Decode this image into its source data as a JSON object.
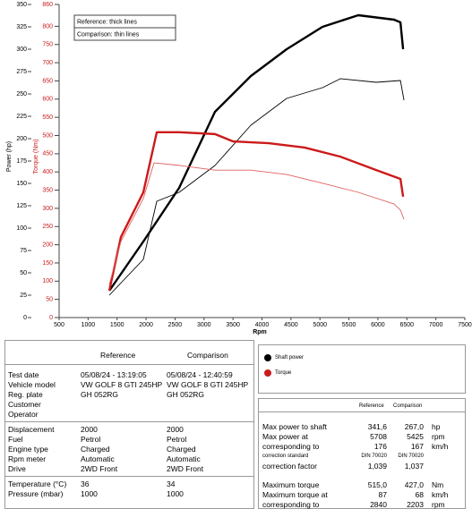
{
  "chart_data": {
    "type": "line",
    "x_label": "Rpm",
    "y_label": "Power (hp)",
    "y2_label": "Torque (Nm)",
    "annotations": [
      "Reference: thick lines",
      "Comparison: thin lines"
    ],
    "xlim": [
      500,
      7500
    ],
    "xticks": [
      500,
      1000,
      1500,
      2000,
      2500,
      3000,
      3500,
      4000,
      4500,
      5000,
      5500,
      6000,
      6500,
      7000,
      7500
    ],
    "ylim": [
      0,
      350
    ],
    "yticks": [
      0,
      25,
      50,
      75,
      100,
      125,
      150,
      175,
      200,
      225,
      250,
      275,
      300,
      325,
      350
    ],
    "y2lim": [
      0,
      860
    ],
    "y2ticks": [
      0,
      50,
      100,
      150,
      200,
      250,
      300,
      350,
      400,
      450,
      500,
      550,
      600,
      650,
      700,
      750,
      800,
      860
    ],
    "legend": [
      {
        "name": "Shaft power",
        "color": "#000000"
      },
      {
        "name": "Torque",
        "color": "#cc1a1a"
      }
    ],
    "series": [
      {
        "color": "#000000",
        "line_width": 2.4,
        "x": [
          1366,
          1953,
          2571,
          3189,
          3808,
          4426,
          5044,
          5662,
          6280,
          6389,
          6435
        ],
        "values": [
          30,
          85,
          145,
          230,
          270,
          300,
          325,
          338,
          333,
          330,
          300
        ]
      },
      {
        "color": "#000000",
        "line_width": 0.9,
        "x": [
          1366,
          1953,
          2185,
          2571,
          3189,
          3808,
          4426,
          5044,
          5353,
          5971,
          6389,
          6450
        ],
        "values": [
          25,
          65,
          130,
          140,
          170,
          215,
          245,
          257,
          267,
          263,
          265,
          243
        ]
      },
      {
        "color": "#cc1a1a",
        "line_width": 2.4,
        "axis": "y2",
        "x": [
          1366,
          1566,
          1953,
          2185,
          2571,
          3189,
          3498,
          4117,
          4735,
          5353,
          5971,
          6389,
          6435
        ],
        "values": [
          74,
          221,
          344,
          509,
          509,
          504,
          484,
          479,
          467,
          442,
          405,
          381,
          332
        ]
      },
      {
        "color": "#e06060",
        "line_width": 0.9,
        "axis": "y2",
        "x": [
          1366,
          1566,
          1953,
          2138,
          2571,
          3189,
          3808,
          4426,
          5044,
          5662,
          6280,
          6389,
          6450
        ],
        "values": [
          91,
          209,
          327,
          425,
          418,
          405,
          405,
          393,
          369,
          344,
          312,
          295,
          270
        ]
      }
    ]
  },
  "details": {
    "headers": [
      "Reference",
      "Comparison"
    ],
    "groups": [
      [
        [
          "Test date",
          "05/08/24 - 13:19:05",
          "05/08/24 - 12:40:59"
        ],
        [
          "Vehicle model",
          "VW GOLF 8 GTI 245HP",
          "VW GOLF 8 GTI 245HP"
        ],
        [
          "Reg. plate",
          "GH 052RG",
          "GH 052RG"
        ],
        [
          "Customer"
        ],
        [
          "Operator"
        ]
      ],
      [
        [
          "Displacement",
          "2000",
          "2000"
        ],
        [
          "Fuel",
          "Petrol",
          "Petrol"
        ],
        [
          "Engine type",
          "Charged",
          "Charged"
        ],
        [
          "Rpm meter",
          "Automatic",
          "Automatic"
        ],
        [
          "Drive",
          "2WD Front",
          "2WD Front"
        ]
      ],
      [
        [
          "Temperature (°C)",
          "36",
          "34"
        ],
        [
          "Pressure (mbar)",
          "1000",
          "1000"
        ]
      ]
    ]
  },
  "results": {
    "headers": [
      "Reference",
      "Comparison"
    ],
    "groups": [
      [
        [
          "Max power to shaft",
          "341,6",
          "267,0",
          "hp"
        ],
        [
          "Max power at",
          "5708",
          "5425",
          "rpm"
        ],
        [
          "corresponding to",
          "176",
          "167",
          "km/h"
        ],
        [
          "correction standard",
          "DIN 70020",
          "DIN 70020"
        ],
        [
          "correction factor",
          "1,039",
          "1,037"
        ]
      ],
      [
        [
          "Maximum torque",
          "515,0",
          "427,0",
          "Nm"
        ],
        [
          "Maximum torque at",
          "87",
          "68",
          "km/h"
        ],
        [
          "corresponding to",
          "2840",
          "2203",
          "rpm"
        ]
      ]
    ]
  }
}
